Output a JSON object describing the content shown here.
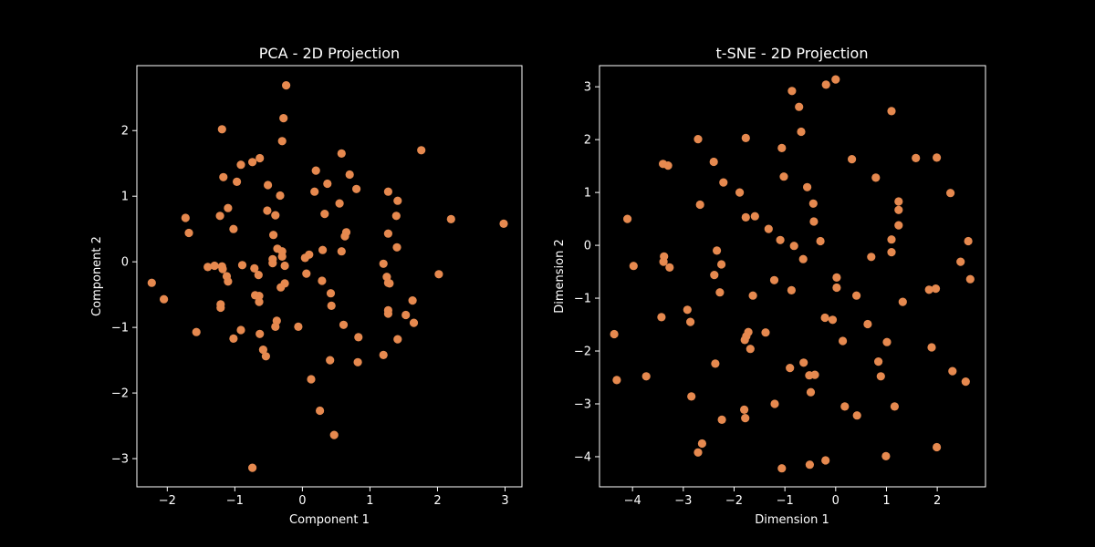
{
  "figure": {
    "background": "#000000",
    "axes_color": "#ffffff",
    "marker_color": "#e6894f"
  },
  "chart_data": [
    {
      "type": "scatter",
      "title": "PCA - 2D Projection",
      "xlabel": "Component 1",
      "ylabel": "Component 2",
      "xlim": [
        -2.45,
        3.25
      ],
      "ylim": [
        -3.43,
        2.99
      ],
      "xticks": [
        -2,
        -1,
        0,
        1,
        2,
        3
      ],
      "yticks": [
        -3,
        -2,
        -1,
        0,
        1,
        2
      ],
      "tick_labels_x": [
        "−2",
        "−1",
        "0",
        "1",
        "2",
        "3"
      ],
      "tick_labels_y": [
        "−3",
        "−2",
        "−1",
        "0",
        "1",
        "2"
      ],
      "grid": false,
      "points": [
        [
          -0.24,
          2.69
        ],
        [
          -0.28,
          2.19
        ],
        [
          -1.19,
          2.02
        ],
        [
          -0.3,
          1.84
        ],
        [
          1.76,
          1.7
        ],
        [
          0.58,
          1.65
        ],
        [
          -0.63,
          1.58
        ],
        [
          -0.74,
          1.52
        ],
        [
          -0.91,
          1.48
        ],
        [
          0.2,
          1.39
        ],
        [
          0.7,
          1.33
        ],
        [
          -1.17,
          1.29
        ],
        [
          -0.51,
          1.17
        ],
        [
          -0.97,
          1.22
        ],
        [
          0.37,
          1.19
        ],
        [
          0.8,
          1.11
        ],
        [
          0.18,
          1.07
        ],
        [
          1.27,
          1.07
        ],
        [
          -0.33,
          1.01
        ],
        [
          1.41,
          0.93
        ],
        [
          0.55,
          0.89
        ],
        [
          -1.1,
          0.82
        ],
        [
          -0.52,
          0.78
        ],
        [
          -0.4,
          0.71
        ],
        [
          0.33,
          0.73
        ],
        [
          -1.22,
          0.7
        ],
        [
          1.39,
          0.7
        ],
        [
          -1.73,
          0.67
        ],
        [
          2.2,
          0.65
        ],
        [
          2.98,
          0.58
        ],
        [
          -1.02,
          0.5
        ],
        [
          -1.68,
          0.44
        ],
        [
          0.65,
          0.45
        ],
        [
          1.27,
          0.43
        ],
        [
          0.63,
          0.39
        ],
        [
          -0.43,
          0.41
        ],
        [
          -0.37,
          0.2
        ],
        [
          1.4,
          0.22
        ],
        [
          -0.3,
          0.16
        ],
        [
          0.58,
          0.16
        ],
        [
          0.3,
          0.18
        ],
        [
          -0.3,
          0.08
        ],
        [
          0.1,
          0.11
        ],
        [
          0.04,
          0.06
        ],
        [
          -0.44,
          0.04
        ],
        [
          -0.44,
          -0.02
        ],
        [
          -0.26,
          -0.06
        ],
        [
          -1.3,
          -0.06
        ],
        [
          -1.19,
          -0.07
        ],
        [
          -1.4,
          -0.08
        ],
        [
          -1.18,
          -0.11
        ],
        [
          -0.89,
          -0.05
        ],
        [
          -0.71,
          -0.1
        ],
        [
          1.2,
          -0.03
        ],
        [
          -2.23,
          -0.32
        ],
        [
          -1.12,
          -0.22
        ],
        [
          -0.65,
          -0.2
        ],
        [
          0.06,
          -0.18
        ],
        [
          2.02,
          -0.19
        ],
        [
          1.25,
          -0.23
        ],
        [
          -1.1,
          -0.3
        ],
        [
          -0.26,
          -0.33
        ],
        [
          -0.32,
          -0.39
        ],
        [
          0.29,
          -0.29
        ],
        [
          1.27,
          -0.32
        ],
        [
          1.29,
          -0.33
        ],
        [
          -0.7,
          -0.51
        ],
        [
          -0.64,
          -0.52
        ],
        [
          0.42,
          -0.48
        ],
        [
          -2.05,
          -0.57
        ],
        [
          1.63,
          -0.59
        ],
        [
          -0.64,
          -0.61
        ],
        [
          -1.21,
          -0.65
        ],
        [
          0.43,
          -0.67
        ],
        [
          -1.21,
          -0.7
        ],
        [
          1.27,
          -0.74
        ],
        [
          1.27,
          -0.79
        ],
        [
          1.53,
          -0.81
        ],
        [
          -0.38,
          -0.9
        ],
        [
          -0.4,
          -0.99
        ],
        [
          0.61,
          -0.96
        ],
        [
          -0.06,
          -0.99
        ],
        [
          1.65,
          -0.93
        ],
        [
          -0.91,
          -1.04
        ],
        [
          -1.57,
          -1.07
        ],
        [
          -0.63,
          -1.1
        ],
        [
          -1.02,
          -1.17
        ],
        [
          0.83,
          -1.15
        ],
        [
          1.41,
          -1.18
        ],
        [
          -0.58,
          -1.34
        ],
        [
          -0.54,
          -1.44
        ],
        [
          1.2,
          -1.42
        ],
        [
          0.41,
          -1.5
        ],
        [
          0.82,
          -1.53
        ],
        [
          0.13,
          -1.79
        ],
        [
          0.26,
          -2.27
        ],
        [
          0.47,
          -2.64
        ],
        [
          -0.74,
          -3.14
        ]
      ]
    },
    {
      "type": "scatter",
      "title": "t-SNE - 2D Projection",
      "xlabel": "Dimension 1",
      "ylabel": "Dimension 2",
      "xlim": [
        -4.65,
        2.95
      ],
      "ylim": [
        -4.57,
        3.4
      ],
      "xticks": [
        -4,
        -3,
        -2,
        -1,
        0,
        1,
        2
      ],
      "yticks": [
        -4,
        -3,
        -2,
        -1,
        0,
        1,
        2,
        3
      ],
      "tick_labels_x": [
        "−4",
        "−3",
        "−2",
        "−1",
        "0",
        "1",
        "2"
      ],
      "tick_labels_y": [
        "−4",
        "−3",
        "−2",
        "−1",
        "0",
        "1",
        "2",
        "3"
      ],
      "grid": false,
      "points": [
        [
          0.0,
          3.14
        ],
        [
          -0.19,
          3.04
        ],
        [
          -0.86,
          2.92
        ],
        [
          -0.72,
          2.62
        ],
        [
          1.1,
          2.54
        ],
        [
          -0.68,
          2.15
        ],
        [
          -2.71,
          2.01
        ],
        [
          -1.77,
          2.03
        ],
        [
          -1.06,
          1.84
        ],
        [
          1.99,
          1.66
        ],
        [
          1.58,
          1.65
        ],
        [
          0.32,
          1.63
        ],
        [
          -3.4,
          1.54
        ],
        [
          -3.3,
          1.51
        ],
        [
          -2.4,
          1.58
        ],
        [
          -1.02,
          1.3
        ],
        [
          0.79,
          1.28
        ],
        [
          -2.21,
          1.19
        ],
        [
          -0.56,
          1.1
        ],
        [
          -1.89,
          1.0
        ],
        [
          2.26,
          0.99
        ],
        [
          1.24,
          0.83
        ],
        [
          -2.67,
          0.77
        ],
        [
          -0.44,
          0.79
        ],
        [
          1.24,
          0.67
        ],
        [
          -1.59,
          0.55
        ],
        [
          -1.77,
          0.53
        ],
        [
          -4.1,
          0.5
        ],
        [
          -0.43,
          0.45
        ],
        [
          1.24,
          0.38
        ],
        [
          -1.32,
          0.31
        ],
        [
          -1.09,
          0.1
        ],
        [
          -0.3,
          0.08
        ],
        [
          1.1,
          0.11
        ],
        [
          2.61,
          0.08
        ],
        [
          -0.82,
          -0.01
        ],
        [
          -2.34,
          -0.1
        ],
        [
          1.1,
          -0.13
        ],
        [
          0.7,
          -0.22
        ],
        [
          -0.64,
          -0.26
        ],
        [
          -3.38,
          -0.21
        ],
        [
          -3.39,
          -0.31
        ],
        [
          -2.25,
          -0.36
        ],
        [
          -3.27,
          -0.42
        ],
        [
          -3.98,
          -0.39
        ],
        [
          2.46,
          -0.31
        ],
        [
          -2.39,
          -0.56
        ],
        [
          0.02,
          -0.61
        ],
        [
          2.65,
          -0.64
        ],
        [
          -1.21,
          -0.66
        ],
        [
          0.02,
          -0.8
        ],
        [
          -2.28,
          -0.89
        ],
        [
          1.84,
          -0.84
        ],
        [
          1.97,
          -0.82
        ],
        [
          -1.63,
          -0.95
        ],
        [
          -0.87,
          -0.85
        ],
        [
          0.41,
          -0.95
        ],
        [
          1.32,
          -1.07
        ],
        [
          -2.92,
          -1.22
        ],
        [
          -3.43,
          -1.36
        ],
        [
          -2.86,
          -1.45
        ],
        [
          -0.21,
          -1.37
        ],
        [
          -0.06,
          -1.41
        ],
        [
          0.63,
          -1.49
        ],
        [
          -1.38,
          -1.65
        ],
        [
          -4.36,
          -1.68
        ],
        [
          -1.72,
          -1.64
        ],
        [
          -1.76,
          -1.72
        ],
        [
          -1.79,
          -1.79
        ],
        [
          0.14,
          -1.81
        ],
        [
          1.01,
          -1.83
        ],
        [
          -1.68,
          -1.96
        ],
        [
          0.84,
          -2.2
        ],
        [
          -0.63,
          -2.22
        ],
        [
          1.89,
          -1.93
        ],
        [
          -0.9,
          -2.32
        ],
        [
          -0.52,
          -2.46
        ],
        [
          -0.41,
          -2.45
        ],
        [
          0.89,
          -2.48
        ],
        [
          -2.37,
          -2.24
        ],
        [
          -3.73,
          -2.48
        ],
        [
          -4.31,
          -2.55
        ],
        [
          2.3,
          -2.38
        ],
        [
          2.56,
          -2.58
        ],
        [
          -0.49,
          -2.78
        ],
        [
          -2.84,
          -2.86
        ],
        [
          -1.2,
          -3.0
        ],
        [
          0.18,
          -3.05
        ],
        [
          1.16,
          -3.05
        ],
        [
          -1.8,
          -3.11
        ],
        [
          -2.24,
          -3.3
        ],
        [
          -1.78,
          -3.27
        ],
        [
          0.42,
          -3.22
        ],
        [
          -2.63,
          -3.75
        ],
        [
          -2.71,
          -3.92
        ],
        [
          0.99,
          -3.99
        ],
        [
          -0.2,
          -4.07
        ],
        [
          -0.51,
          -4.15
        ],
        [
          -1.06,
          -4.22
        ],
        [
          1.99,
          -3.82
        ]
      ]
    }
  ]
}
